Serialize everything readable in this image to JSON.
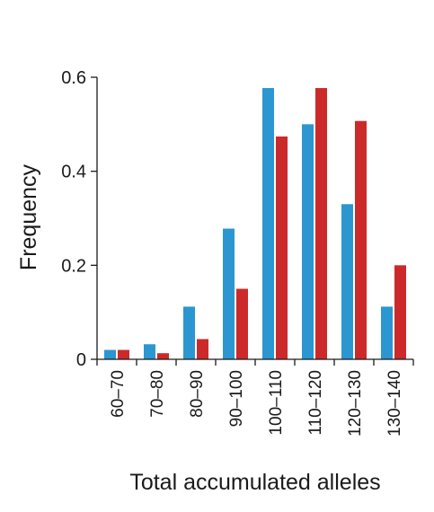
{
  "chart_data": {
    "type": "bar",
    "title": "",
    "xlabel": "Total accumulated alleles",
    "ylabel": "Frequency",
    "categories": [
      "60–70",
      "70–80",
      "80–90",
      "90–100",
      "100–110",
      "110–120",
      "120–130",
      "130–140"
    ],
    "series": [
      {
        "color": "#2b96cf",
        "values": [
          0.02,
          0.032,
          0.112,
          0.278,
          0.577,
          0.5,
          0.33,
          0.112
        ]
      },
      {
        "color": "#cc2a2a",
        "values": [
          0.02,
          0.013,
          0.043,
          0.15,
          0.474,
          0.577,
          0.507,
          0.2
        ]
      }
    ],
    "yticks": [
      {
        "value": 0,
        "label": "0"
      },
      {
        "value": 0.2,
        "label": "0.2"
      },
      {
        "value": 0.4,
        "label": "0.4"
      },
      {
        "value": 0.6,
        "label": "0.6"
      }
    ],
    "ylim": [
      0,
      0.6
    ],
    "grid": false,
    "legend": "none"
  }
}
